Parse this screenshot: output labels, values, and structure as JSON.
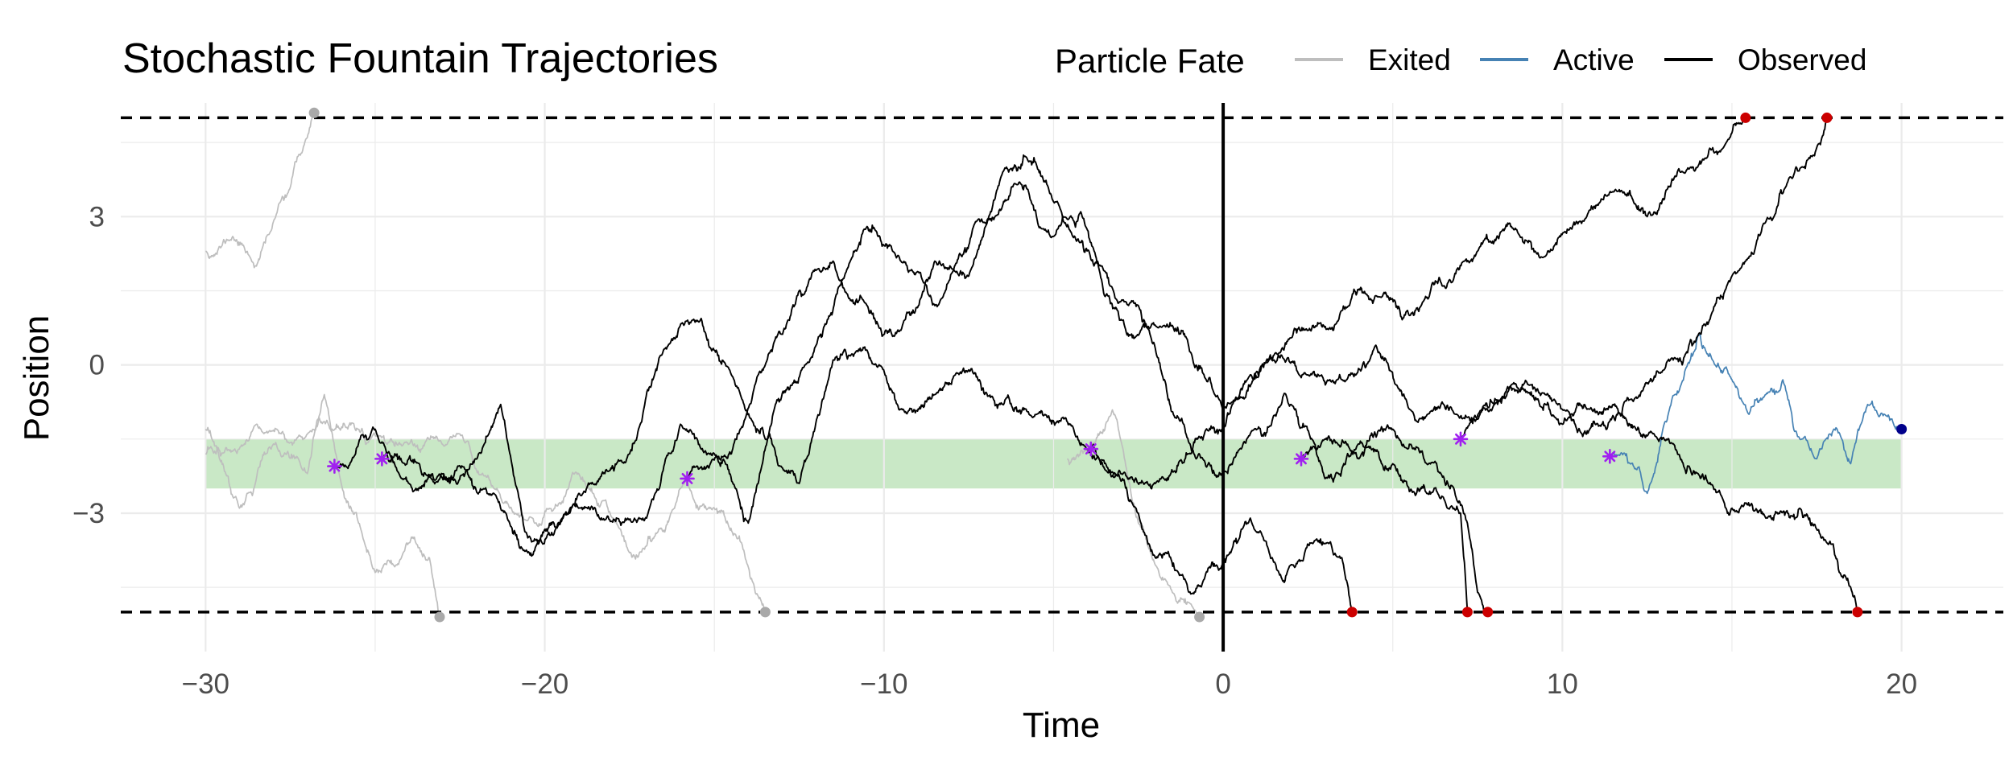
{
  "chart_data": {
    "type": "line",
    "title": "Stochastic Fountain Trajectories",
    "xlabel": "Time",
    "ylabel": "Position",
    "xlim": [
      -32.5,
      23
    ],
    "ylim": [
      -5.8,
      5.3
    ],
    "x_ticks": [
      -30,
      -20,
      -10,
      0,
      10,
      20
    ],
    "x_tick_labels": [
      "−30",
      "−20",
      "−10",
      "0",
      "10",
      "20"
    ],
    "y_ticks": [
      -3,
      0,
      3
    ],
    "y_tick_labels": [
      "−3",
      "0",
      "3"
    ],
    "grid": true,
    "legend": {
      "title": "Particle Fate",
      "position": "top",
      "entries": [
        {
          "label": "Exited",
          "color": "#bebebe"
        },
        {
          "label": "Active",
          "color": "#4682b4"
        },
        {
          "label": "Observed",
          "color": "#000000"
        }
      ]
    },
    "boundaries": {
      "upper": 5,
      "lower": -5
    },
    "observation_time": 0,
    "target_band": {
      "y_min": -2.5,
      "y_max": -1.5,
      "x_min": -30,
      "x_max": 20,
      "color": "#c9e8c6"
    },
    "series": [
      {
        "fate": "Exited",
        "color": "#bebebe",
        "end_marker": "#a9a9a9",
        "seed": 11,
        "vol": 1.0,
        "points": [
          [
            -30,
            2.3
          ],
          [
            -29.2,
            2.6
          ],
          [
            -28.5,
            2.0
          ],
          [
            -28,
            2.9
          ],
          [
            -27.5,
            3.6
          ],
          [
            -26.8,
            5.1
          ]
        ]
      },
      {
        "fate": "Exited",
        "color": "#bebebe",
        "end_marker": "#a9a9a9",
        "seed": 12,
        "vol": 1.0,
        "points": [
          [
            -30,
            -1.3
          ],
          [
            -29,
            -2.9
          ],
          [
            -28,
            -1.6
          ],
          [
            -27,
            -2.2
          ],
          [
            -26.5,
            -0.6
          ],
          [
            -26,
            -2.4
          ],
          [
            -25,
            -4.2
          ],
          [
            -24,
            -3.6
          ],
          [
            -23.4,
            -3.9
          ],
          [
            -23.1,
            -5.1
          ]
        ]
      },
      {
        "fate": "Exited",
        "color": "#bebebe",
        "end_marker": "#a9a9a9",
        "seed": 13,
        "vol": 1.0,
        "points": [
          [
            -30,
            -1.8
          ],
          [
            -28.5,
            -1.2
          ],
          [
            -27,
            -1.4
          ],
          [
            -25.5,
            -1.3
          ],
          [
            -24,
            -1.6
          ],
          [
            -22.5,
            -1.4
          ],
          [
            -21.5,
            -2.5
          ],
          [
            -20.3,
            -3.2
          ],
          [
            -19,
            -2.2
          ],
          [
            -17.5,
            -3.8
          ],
          [
            -16,
            -2.5
          ],
          [
            -15,
            -2.9
          ],
          [
            -14.2,
            -3.6
          ],
          [
            -13.5,
            -5.0
          ]
        ]
      },
      {
        "fate": "Exited",
        "color": "#bebebe",
        "end_marker": "#a9a9a9",
        "seed": 14,
        "vol": 1.0,
        "points": [
          [
            -4.6,
            -1.9
          ],
          [
            -4.0,
            -1.7
          ],
          [
            -3.2,
            -1.0
          ],
          [
            -2.5,
            -3.2
          ],
          [
            -1.5,
            -4.6
          ],
          [
            -0.9,
            -4.9
          ],
          [
            -0.7,
            -5.1
          ]
        ]
      },
      {
        "fate": "Observed",
        "color": "#000000",
        "seed": 21,
        "vol": 1.0,
        "start_marker": {
          "x": -26.2,
          "y": -2.05
        },
        "points": [
          [
            -26.2,
            -2.05
          ],
          [
            -25,
            -1.3
          ],
          [
            -24,
            -2.4
          ],
          [
            -22,
            -1.9
          ],
          [
            -21.3,
            -0.8
          ],
          [
            -20.5,
            -3.5
          ],
          [
            -19,
            -2.9
          ],
          [
            -17,
            -3.1
          ],
          [
            -16,
            -1.2
          ],
          [
            -15,
            -1.8
          ],
          [
            -14,
            -3.2
          ],
          [
            -13.2,
            -0.8
          ],
          [
            -12,
            0.4
          ],
          [
            -10.5,
            2.8
          ],
          [
            -9.5,
            2.1
          ],
          [
            -8.5,
            1.2
          ],
          [
            -7.3,
            2.9
          ],
          [
            -6,
            3.7
          ],
          [
            -5,
            2.6
          ],
          [
            -4.2,
            3.1
          ],
          [
            -3.5,
            1.4
          ],
          [
            -2.5,
            0.6
          ],
          [
            -1.5,
            0.8
          ],
          [
            -0.5,
            -0.3
          ],
          [
            0,
            -0.9
          ],
          [
            1.5,
            0.1
          ],
          [
            2.5,
            -0.2
          ],
          [
            3.5,
            -0.3
          ],
          [
            4.5,
            0.4
          ],
          [
            5.5,
            -0.9
          ],
          [
            6.5,
            -0.8
          ],
          [
            7.5,
            -1.1
          ],
          [
            8.5,
            -0.4
          ],
          [
            9.5,
            -0.8
          ],
          [
            10,
            -1.2
          ],
          [
            11.5,
            -0.8
          ],
          [
            13,
            -1.5
          ],
          [
            14,
            -2.2
          ],
          [
            15,
            -2.9
          ],
          [
            16,
            -3.1
          ],
          [
            17,
            -2.9
          ],
          [
            17.8,
            -3.6
          ],
          [
            18.5,
            -4.5
          ],
          [
            18.7,
            -5.0
          ]
        ]
      },
      {
        "fate": "Observed",
        "color": "#000000",
        "seed": 22,
        "vol": 1.0,
        "start_marker": {
          "x": -24.8,
          "y": -1.9
        },
        "points": [
          [
            -24.8,
            -1.9
          ],
          [
            -23,
            -2.2
          ],
          [
            -21.5,
            -2.6
          ],
          [
            -20.5,
            -3.8
          ],
          [
            -19,
            -2.6
          ],
          [
            -17.5,
            -1.8
          ],
          [
            -16.5,
            0.3
          ],
          [
            -15.5,
            0.9
          ],
          [
            -14.5,
            -0.2
          ],
          [
            -13.5,
            -1.5
          ],
          [
            -12.5,
            -2.4
          ],
          [
            -11.5,
            0.1
          ],
          [
            -10.5,
            0.3
          ],
          [
            -9.5,
            -0.9
          ],
          [
            -8.5,
            -0.6
          ],
          [
            -7.5,
            -0.1
          ],
          [
            -6.5,
            -0.8
          ],
          [
            -5.5,
            -1.0
          ],
          [
            -4.5,
            -1.2
          ],
          [
            -3.5,
            -2.1
          ],
          [
            -2.5,
            -3.0
          ],
          [
            -2.0,
            -3.9
          ],
          [
            -1.0,
            -4.6
          ],
          [
            0,
            -4.0
          ],
          [
            0.8,
            -3.1
          ],
          [
            1.8,
            -4.4
          ],
          [
            2.6,
            -3.6
          ],
          [
            3.5,
            -3.9
          ],
          [
            3.8,
            -5.0
          ]
        ]
      },
      {
        "fate": "Observed",
        "color": "#000000",
        "seed": 23,
        "vol": 1.0,
        "start_marker": {
          "x": -15.8,
          "y": -2.3
        },
        "points": [
          [
            -15.8,
            -2.3
          ],
          [
            -14.5,
            -1.8
          ],
          [
            -13.5,
            0.0
          ],
          [
            -12.5,
            1.5
          ],
          [
            -11.5,
            2.1
          ],
          [
            -10.5,
            1.2
          ],
          [
            -9.5,
            0.7
          ],
          [
            -8.5,
            2.1
          ],
          [
            -7.5,
            1.8
          ],
          [
            -6.5,
            3.9
          ],
          [
            -5.8,
            4.2
          ],
          [
            -5.0,
            3.3
          ],
          [
            -4.5,
            2.7
          ],
          [
            -3.5,
            1.9
          ],
          [
            -2.5,
            1.2
          ],
          [
            -1.8,
            -0.2
          ],
          [
            -0.8,
            -1.9
          ],
          [
            0,
            -2.2
          ],
          [
            1,
            -1.3
          ],
          [
            2,
            -0.8
          ],
          [
            3,
            -2.3
          ],
          [
            4,
            -1.6
          ],
          [
            5,
            -2.0
          ],
          [
            6,
            -2.6
          ],
          [
            7,
            -3.0
          ],
          [
            7.2,
            -5.0
          ]
        ]
      },
      {
        "fate": "Observed",
        "color": "#000000",
        "seed": 24,
        "vol": 1.0,
        "start_marker": {
          "x": -3.9,
          "y": -1.7
        },
        "points": [
          [
            -3.9,
            -1.7
          ],
          [
            -3,
            -2.2
          ],
          [
            -2,
            -2.4
          ],
          [
            -1,
            -1.8
          ],
          [
            0,
            -1.3
          ],
          [
            0.8,
            -0.2
          ],
          [
            1.5,
            0.2
          ],
          [
            2.5,
            0.7
          ],
          [
            3.5,
            1.1
          ],
          [
            4.5,
            1.4
          ],
          [
            5.5,
            1.0
          ],
          [
            6.5,
            1.6
          ],
          [
            7.5,
            2.3
          ],
          [
            8.5,
            2.8
          ],
          [
            9.5,
            2.2
          ],
          [
            10.5,
            2.9
          ],
          [
            11.5,
            3.5
          ],
          [
            12.5,
            3.0
          ],
          [
            13.5,
            3.9
          ],
          [
            14.5,
            4.3
          ],
          [
            15.2,
            4.9
          ],
          [
            15.4,
            5.0
          ]
        ]
      },
      {
        "fate": "Observed",
        "color": "#000000",
        "seed": 25,
        "vol": 1.0,
        "start_marker": {
          "x": 2.3,
          "y": -1.9
        },
        "points": [
          [
            2.3,
            -1.9
          ],
          [
            3,
            -1.5
          ],
          [
            4,
            -1.9
          ],
          [
            5,
            -1.3
          ],
          [
            6,
            -2.0
          ],
          [
            6.8,
            -2.5
          ],
          [
            7.2,
            -3.2
          ],
          [
            7.5,
            -4.6
          ],
          [
            7.8,
            -5.0
          ]
        ]
      },
      {
        "fate": "Observed",
        "color": "#000000",
        "seed": 26,
        "vol": 1.0,
        "start_marker": {
          "x": 7.0,
          "y": -1.5
        },
        "points": [
          [
            7.0,
            -1.5
          ],
          [
            8,
            -0.8
          ],
          [
            9,
            -0.4
          ],
          [
            10,
            -0.9
          ],
          [
            11,
            -1.2
          ],
          [
            12,
            -0.7
          ],
          [
            13,
            -0.1
          ],
          [
            14,
            0.6
          ],
          [
            15,
            1.8
          ],
          [
            16,
            2.9
          ],
          [
            16.8,
            3.8
          ],
          [
            17.5,
            4.4
          ],
          [
            17.8,
            5.0
          ]
        ]
      },
      {
        "fate": "Active",
        "color": "#4682b4",
        "end_marker": "#00008b",
        "seed": 31,
        "vol": 1.0,
        "start_marker": {
          "x": 11.4,
          "y": -1.85
        },
        "points": [
          [
            11.4,
            -1.85
          ],
          [
            12,
            -2.0
          ],
          [
            12.5,
            -2.6
          ],
          [
            13,
            -1.2
          ],
          [
            13.5,
            -0.4
          ],
          [
            14,
            0.6
          ],
          [
            14.5,
            0.0
          ],
          [
            15,
            -0.3
          ],
          [
            15.5,
            -1.0
          ],
          [
            16,
            -0.6
          ],
          [
            16.5,
            -0.3
          ],
          [
            17,
            -1.5
          ],
          [
            17.5,
            -1.9
          ],
          [
            18,
            -1.3
          ],
          [
            18.5,
            -2.0
          ],
          [
            19,
            -0.8
          ],
          [
            19.5,
            -1.0
          ],
          [
            20,
            -1.3
          ]
        ]
      }
    ]
  }
}
